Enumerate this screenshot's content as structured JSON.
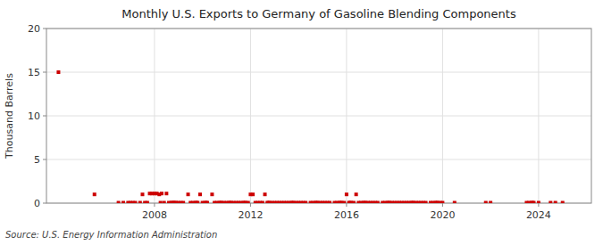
{
  "chart_data": {
    "type": "scatter",
    "title": "Monthly U.S. Exports to Germany of Gasoline Blending Components",
    "y_label": "Thousand Barrels",
    "source": "Source: U.S. Energy Information Administration",
    "color": "#cc0000",
    "marker": "square",
    "grid": true,
    "xlim": [
      2003.5,
      2026.2
    ],
    "xticks": [
      2008,
      2012,
      2016,
      2020,
      2024
    ],
    "ylim": [
      0,
      20
    ],
    "yticks": [
      0,
      5,
      10,
      15,
      20
    ],
    "x": [
      2004.0,
      2005.5,
      2006.5,
      2006.7,
      2006.9,
      2007.0,
      2007.1,
      2007.2,
      2007.4,
      2007.5,
      2007.6,
      2007.7,
      2007.8,
      2007.9,
      2008.0,
      2008.1,
      2008.2,
      2008.25,
      2008.3,
      2008.4,
      2008.5,
      2008.6,
      2008.7,
      2008.75,
      2008.8,
      2008.85,
      2008.9,
      2009.0,
      2009.1,
      2009.2,
      2009.4,
      2009.5,
      2009.6,
      2009.7,
      2009.75,
      2009.8,
      2009.9,
      2010.0,
      2010.1,
      2010.15,
      2010.2,
      2010.4,
      2010.5,
      2010.6,
      2010.7,
      2010.75,
      2010.8,
      2010.9,
      2011.0,
      2011.1,
      2011.15,
      2011.2,
      2011.3,
      2011.4,
      2011.5,
      2011.6,
      2011.7,
      2011.75,
      2011.8,
      2011.9,
      2012.0,
      2012.1,
      2012.2,
      2012.3,
      2012.4,
      2012.5,
      2012.6,
      2012.7,
      2012.75,
      2012.8,
      2012.9,
      2013.0,
      2013.1,
      2013.2,
      2013.3,
      2013.4,
      2013.5,
      2013.6,
      2013.7,
      2013.75,
      2013.8,
      2013.9,
      2014.0,
      2014.1,
      2014.2,
      2014.3,
      2014.5,
      2014.6,
      2014.7,
      2014.75,
      2014.8,
      2014.9,
      2015.0,
      2015.1,
      2015.2,
      2015.3,
      2015.5,
      2015.6,
      2015.7,
      2015.75,
      2015.8,
      2015.9,
      2016.0,
      2016.1,
      2016.15,
      2016.2,
      2016.3,
      2016.4,
      2016.5,
      2016.6,
      2016.7,
      2016.75,
      2016.8,
      2016.9,
      2017.0,
      2017.1,
      2017.2,
      2017.3,
      2017.5,
      2017.6,
      2017.7,
      2017.75,
      2017.8,
      2017.9,
      2018.0,
      2018.1,
      2018.2,
      2018.3,
      2018.4,
      2018.5,
      2018.6,
      2018.7,
      2018.75,
      2018.8,
      2018.9,
      2019.0,
      2019.1,
      2019.2,
      2019.3,
      2019.5,
      2019.6,
      2019.7,
      2019.75,
      2019.8,
      2019.9,
      2020.0,
      2020.5,
      2021.8,
      2022.0,
      2023.5,
      2023.6,
      2023.7,
      2023.75,
      2023.8,
      2024.0,
      2024.5,
      2024.7,
      2025.0
    ],
    "values": [
      15.0,
      1.0,
      0.05,
      0.05,
      0.05,
      0.05,
      0.05,
      0.05,
      0.05,
      1.0,
      0.05,
      0.05,
      1.1,
      1.1,
      1.1,
      1.1,
      1.0,
      0.05,
      1.1,
      0.05,
      1.1,
      0.05,
      0.05,
      0.05,
      0.05,
      0.05,
      0.05,
      0.05,
      0.05,
      0.05,
      1.0,
      0.05,
      0.05,
      0.05,
      0.05,
      0.05,
      1.0,
      0.05,
      0.05,
      0.05,
      0.05,
      1.0,
      0.05,
      0.05,
      0.05,
      0.05,
      0.05,
      0.05,
      0.05,
      0.05,
      0.05,
      0.05,
      0.05,
      0.05,
      0.05,
      0.05,
      0.05,
      0.05,
      0.05,
      0.05,
      1.0,
      1.0,
      0.05,
      0.05,
      0.05,
      0.05,
      1.0,
      0.05,
      0.05,
      0.05,
      0.05,
      0.05,
      0.05,
      0.05,
      0.05,
      0.05,
      0.05,
      0.05,
      0.05,
      0.05,
      0.05,
      0.05,
      0.05,
      0.05,
      0.05,
      0.05,
      0.05,
      0.05,
      0.05,
      0.05,
      0.05,
      0.05,
      0.05,
      0.05,
      0.05,
      0.05,
      0.05,
      0.05,
      0.05,
      0.05,
      0.05,
      0.05,
      1.0,
      0.05,
      0.05,
      0.05,
      0.05,
      1.0,
      0.05,
      0.05,
      0.05,
      0.05,
      0.05,
      0.05,
      0.05,
      0.05,
      0.05,
      0.05,
      0.05,
      0.05,
      0.05,
      0.05,
      0.05,
      0.05,
      0.05,
      0.05,
      0.05,
      0.05,
      0.05,
      0.05,
      0.05,
      0.05,
      0.05,
      0.05,
      0.05,
      0.05,
      0.05,
      0.05,
      0.05,
      0.05,
      0.05,
      0.05,
      0.05,
      0.05,
      0.05,
      0.05,
      0.05,
      0.05,
      0.05,
      0.05,
      0.05,
      0.05,
      0.05,
      0.05,
      0.05,
      0.05,
      0.05,
      0.05
    ]
  }
}
